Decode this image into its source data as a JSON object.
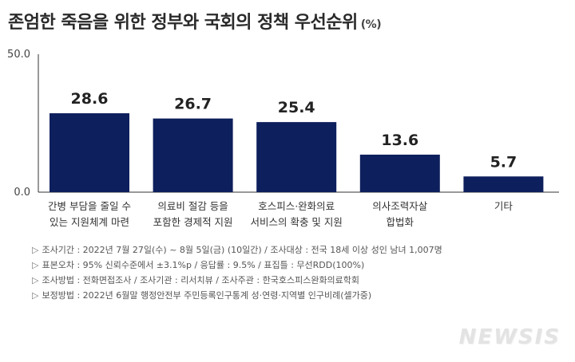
{
  "title": "존엄한 죽음을 위한 정부와 국회의 정책 우선순위",
  "unit": "(%)",
  "chart_data": {
    "type": "bar",
    "categories": [
      [
        "간병 부담을 줄일 수",
        "있는 지원체계 마련"
      ],
      [
        "의료비 절감 등을",
        "포함한 경제적 지원"
      ],
      [
        "호스피스·완화의료",
        "서비스의 확충 및 지원"
      ],
      [
        "의사조력자살",
        "합법화"
      ],
      [
        "기타"
      ]
    ],
    "values": [
      28.6,
      26.7,
      25.4,
      13.6,
      5.7
    ],
    "value_labels": [
      "28.6",
      "26.7",
      "25.4",
      "13.6",
      "5.7"
    ],
    "ylim": [
      0,
      50
    ],
    "ytick_labels": [
      "50.0",
      "0.0"
    ],
    "bar_color": "#0d1f5c",
    "title": "존엄한 죽음을 위한 정부와 국회의 정책 우선순위",
    "xlabel": "",
    "ylabel": ""
  },
  "notes": [
    "조사기간 : 2022년 7월 27일(수) ~ 8월 5일(금) (10일간) / 조사대상 : 전국 18세 이상 성인 남녀 1,007명",
    "표본오차 : 95% 신뢰수준에서 ±3.1%p / 응답률 : 9.5% / 표집틀 : 무선RDD(100%)",
    "조사방법 : 전화면접조사 / 조사기관 : 리서치뷰 / 조사주관 : 한국호스피스완화의료학회",
    "보정방법 : 2022년 6월말 행정안전부 주민등록인구통계 성·연령·지역별 인구비례(셀가중)"
  ],
  "note_marker": "▷",
  "watermark": "NEWSIS"
}
